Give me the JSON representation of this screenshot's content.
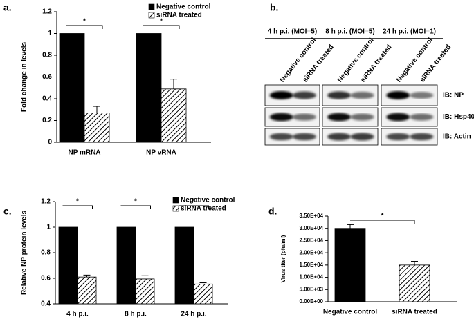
{
  "chart_data": [
    {
      "type": "bar",
      "panel": "a.",
      "ylabel": "Fold change in levels",
      "categories": [
        "NP mRNA",
        "NP vRNA"
      ],
      "series": [
        {
          "name": "Negative control",
          "color": "#000000",
          "pattern": "solid",
          "values": [
            1,
            1
          ]
        },
        {
          "name": "siRNA treated",
          "color": "#000000",
          "pattern": "hatch",
          "values": [
            0.27,
            0.49
          ],
          "errors": [
            0.06,
            0.09
          ]
        }
      ],
      "ylim": [
        0,
        1.2
      ],
      "yticks": [
        0,
        0.2,
        0.4,
        0.6,
        0.8,
        1,
        1.2
      ],
      "annotations": [
        "*",
        "*"
      ],
      "bracket": "within",
      "legend": "top-right"
    },
    {
      "type": "bar",
      "panel": "c.",
      "ylabel": "Relative NP protein levels",
      "categories": [
        "4 h p.i.",
        "8 h p.i.",
        "24 h p.i."
      ],
      "series": [
        {
          "name": "Negative control",
          "color": "#000000",
          "pattern": "solid",
          "values": [
            1,
            1,
            1
          ]
        },
        {
          "name": "siRNA treated",
          "color": "#000000",
          "pattern": "hatch",
          "values": [
            0.61,
            0.595,
            0.555
          ],
          "errors": [
            0.015,
            0.025,
            0.01
          ]
        }
      ],
      "ylim": [
        0.4,
        1.2
      ],
      "yticks": [
        0.4,
        0.6,
        0.8,
        1,
        1.2
      ],
      "annotations": [
        "*",
        "*",
        "*"
      ],
      "bracket": "within",
      "legend": "top-right"
    },
    {
      "type": "bar",
      "panel": "d.",
      "ylabel": "Virus titer (pfu/ml)",
      "categories": [
        "Negative control",
        "siRNA treated"
      ],
      "values": [
        30000,
        15000
      ],
      "errors": [
        1500,
        1500
      ],
      "colors": [
        "#000000",
        "#000000"
      ],
      "patterns": [
        "solid",
        "hatch"
      ],
      "ylim": [
        0,
        35000
      ],
      "yticks": [
        {
          "value": 0,
          "label": "0.00E+00"
        },
        {
          "value": 5000,
          "label": "5.00E+03"
        },
        {
          "value": 10000,
          "label": "1.00E+04"
        },
        {
          "value": 15000,
          "label": "1.50E+04"
        },
        {
          "value": 20000,
          "label": "2.00E+04"
        },
        {
          "value": 25000,
          "label": "2.50E+04"
        },
        {
          "value": 30000,
          "label": "3.00E+04"
        },
        {
          "value": 35000,
          "label": "3.50E+04"
        }
      ],
      "annotations": [
        "*"
      ],
      "bracket": "across"
    }
  ],
  "blot": {
    "panel": "b.",
    "groups": [
      {
        "title": "4 h p.i. (MOI=5)",
        "lanes": [
          "Negative control",
          "siRNA treated"
        ]
      },
      {
        "title": "8 h p.i. (MOI=5)",
        "lanes": [
          "Negative control",
          "siRNA treated"
        ]
      },
      {
        "title": "24 h p.i. (MOI=1)",
        "lanes": [
          "Negative control",
          "siRNA treated"
        ]
      }
    ],
    "rows": [
      "IB: NP",
      "IB: Hsp40",
      "IB: Actin"
    ]
  }
}
